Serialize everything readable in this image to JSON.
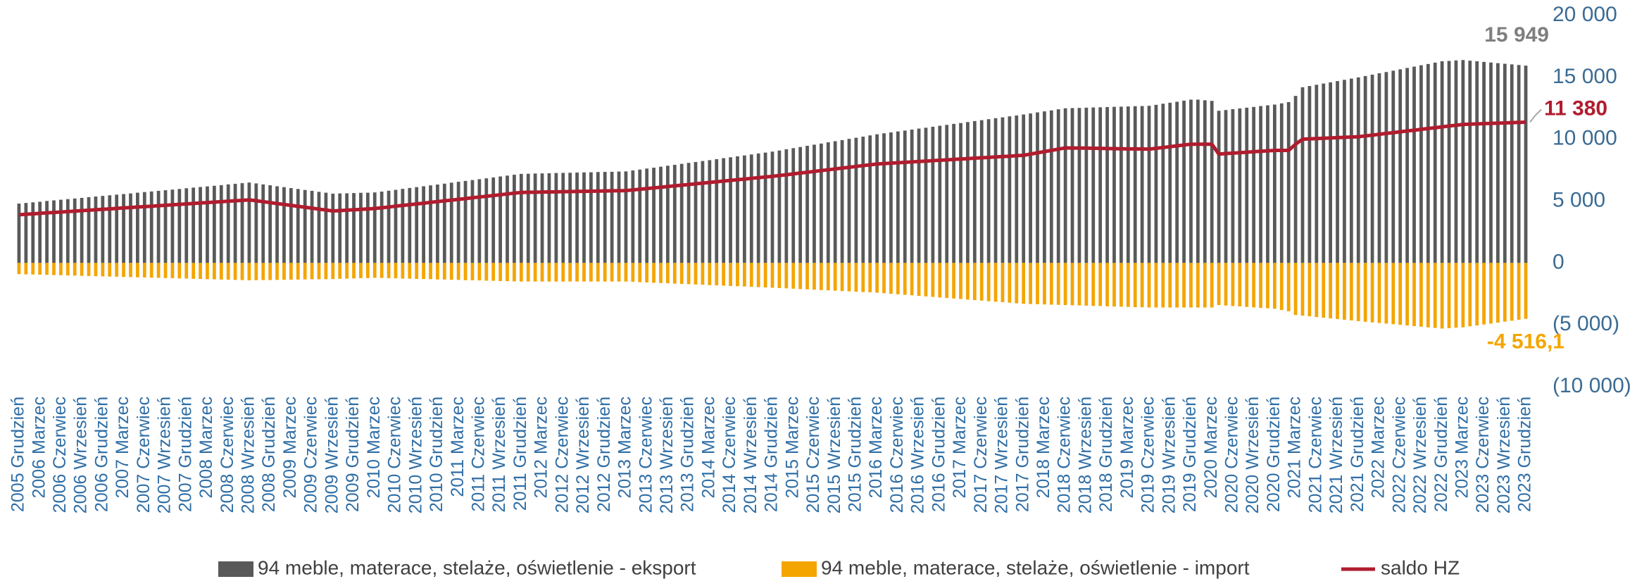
{
  "chart_data": {
    "type": "bar",
    "categories": [
      "2005 Grudzień",
      null,
      null,
      "2006 Marzec",
      null,
      null,
      "2006 Czerwiec",
      null,
      null,
      "2006 Wrzesień",
      null,
      null,
      "2006 Grudzień",
      null,
      null,
      "2007 Marzec",
      null,
      null,
      "2007 Czerwiec",
      null,
      null,
      "2007 Wrzesień",
      null,
      null,
      "2007 Grudzień",
      null,
      null,
      "2008 Marzec",
      null,
      null,
      "2008 Czerwiec",
      null,
      null,
      "2008 Wrzesień",
      null,
      null,
      "2008 Grudzień",
      null,
      null,
      "2009 Marzec",
      null,
      null,
      "2009 Czerwiec",
      null,
      null,
      "2009 Wrzesień",
      null,
      null,
      "2009 Grudzień",
      null,
      null,
      "2010 Marzec",
      null,
      null,
      "2010 Czerwiec",
      null,
      null,
      "2010 Wrzesień",
      null,
      null,
      "2010 Grudzień",
      null,
      null,
      "2011 Marzec",
      null,
      null,
      "2011 Czerwiec",
      null,
      null,
      "2011 Wrzesień",
      null,
      null,
      "2011 Grudzień",
      null,
      null,
      "2012 Marzec",
      null,
      null,
      "2012 Czerwiec",
      null,
      null,
      "2012 Wrzesień",
      null,
      null,
      "2012 Grudzień",
      null,
      null,
      "2013 Marzec",
      null,
      null,
      "2013 Czerwiec",
      null,
      null,
      "2013 Wrzesień",
      null,
      null,
      "2013 Grudzień",
      null,
      null,
      "2014 Marzec",
      null,
      null,
      "2014 Czerwiec",
      null,
      null,
      "2014 Wrzesień",
      null,
      null,
      "2014 Grudzień",
      null,
      null,
      "2015 Marzec",
      null,
      null,
      "2015 Czerwiec",
      null,
      null,
      "2015 Wrzesień",
      null,
      null,
      "2015 Grudzień",
      null,
      null,
      "2016 Marzec",
      null,
      null,
      "2016 Czerwiec",
      null,
      null,
      "2016 Wrzesień",
      null,
      null,
      "2016 Grudzień",
      null,
      null,
      "2017 Marzec",
      null,
      null,
      "2017 Czerwiec",
      null,
      null,
      "2017 Wrzesień",
      null,
      null,
      "2017 Grudzień",
      null,
      null,
      "2018 Marzec",
      null,
      null,
      "2018 Czerwiec",
      null,
      null,
      "2018 Wrzesień",
      null,
      null,
      "2018 Grudzień",
      null,
      null,
      "2019 Marzec",
      null,
      null,
      "2019 Czerwiec",
      null,
      null,
      "2019 Wrzesień",
      null,
      null,
      "2019 Grudzień",
      null,
      null,
      "2020 Marzec",
      null,
      null,
      "2020 Czerwiec",
      null,
      null,
      "2020 Wrzesień",
      null,
      null,
      "2020 Grudzień",
      null,
      null,
      "2021 Marzec",
      null,
      null,
      "2021 Czerwiec",
      null,
      null,
      "2021 Wrzesień",
      null,
      null,
      "2021 Grudzień",
      null,
      null,
      "2022 Marzec",
      null,
      null,
      "2022 Czerwiec",
      null,
      null,
      "2022 Wrzesień",
      null,
      null,
      "2022 Grudzień",
      null,
      null,
      "2023 Marzec",
      null,
      null,
      "2023 Czerwiec",
      null,
      null,
      "2023 Wrzesień",
      null,
      null,
      "2023 Grudzień"
    ],
    "series": [
      {
        "name": "94 meble, materace, stelaże, oświetlenie - eksport",
        "type": "bar",
        "color": "#595959",
        "values": [
          4800,
          4850,
          4900,
          4950,
          5010,
          5060,
          5110,
          5160,
          5210,
          5260,
          5320,
          5370,
          5420,
          5470,
          5520,
          5570,
          5620,
          5680,
          5730,
          5780,
          5830,
          5880,
          5930,
          5980,
          6040,
          6090,
          6140,
          6190,
          6240,
          6290,
          6350,
          6400,
          6450,
          6500,
          6430,
          6350,
          6280,
          6200,
          6130,
          6050,
          5980,
          5900,
          5830,
          5750,
          5680,
          5600,
          5620,
          5630,
          5650,
          5670,
          5680,
          5700,
          5770,
          5840,
          5910,
          5990,
          6060,
          6130,
          6200,
          6270,
          6340,
          6410,
          6490,
          6560,
          6630,
          6700,
          6770,
          6840,
          6910,
          6990,
          7060,
          7130,
          7200,
          7210,
          7230,
          7240,
          7250,
          7270,
          7280,
          7290,
          7310,
          7320,
          7330,
          7350,
          7360,
          7370,
          7390,
          7400,
          7480,
          7550,
          7630,
          7700,
          7780,
          7860,
          7930,
          8010,
          8090,
          8160,
          8240,
          8310,
          8390,
          8470,
          8540,
          8620,
          8690,
          8770,
          8850,
          8920,
          9000,
          9090,
          9190,
          9280,
          9370,
          9470,
          9560,
          9650,
          9750,
          9840,
          9930,
          10030,
          10120,
          10210,
          10310,
          10400,
          10480,
          10550,
          10630,
          10700,
          10780,
          10860,
          10930,
          11010,
          11090,
          11160,
          11240,
          11310,
          11390,
          11470,
          11540,
          11620,
          11700,
          11770,
          11850,
          11920,
          12000,
          12080,
          12170,
          12250,
          12330,
          12420,
          12500,
          12520,
          12530,
          12550,
          12570,
          12580,
          12600,
          12620,
          12630,
          12650,
          12670,
          12680,
          12700,
          12780,
          12870,
          12950,
          13030,
          13120,
          13200,
          13200,
          13150,
          13100,
          12300,
          12360,
          12430,
          12490,
          12550,
          12610,
          12680,
          12740,
          12800,
          12900,
          13000,
          13500,
          14200,
          14300,
          14400,
          14500,
          14600,
          14700,
          14800,
          14900,
          15000,
          15110,
          15220,
          15330,
          15430,
          15540,
          15650,
          15760,
          15870,
          15980,
          16080,
          16190,
          16300,
          16330,
          16370,
          16400,
          16350,
          16300,
          16250,
          16200,
          16150,
          16100,
          16050,
          16000,
          15949
        ],
        "value_labels": {
          "216": "15 949"
        }
      },
      {
        "name": "94 meble, materace, stelaże, oświetlenie - import",
        "type": "bar",
        "color": "#f4a500",
        "values": [
          -900,
          -920,
          -930,
          -950,
          -960,
          -980,
          -990,
          -1010,
          -1020,
          -1040,
          -1050,
          -1070,
          -1080,
          -1100,
          -1110,
          -1130,
          -1140,
          -1160,
          -1170,
          -1190,
          -1200,
          -1220,
          -1230,
          -1250,
          -1260,
          -1280,
          -1290,
          -1310,
          -1320,
          -1340,
          -1350,
          -1370,
          -1380,
          -1400,
          -1390,
          -1380,
          -1380,
          -1370,
          -1360,
          -1350,
          -1340,
          -1330,
          -1320,
          -1320,
          -1310,
          -1300,
          -1280,
          -1270,
          -1250,
          -1230,
          -1220,
          -1200,
          -1210,
          -1230,
          -1240,
          -1260,
          -1270,
          -1290,
          -1300,
          -1310,
          -1330,
          -1340,
          -1360,
          -1370,
          -1390,
          -1400,
          -1410,
          -1430,
          -1440,
          -1460,
          -1470,
          -1490,
          -1500,
          -1500,
          -1500,
          -1500,
          -1500,
          -1500,
          -1500,
          -1500,
          -1500,
          -1500,
          -1500,
          -1500,
          -1500,
          -1500,
          -1500,
          -1500,
          -1520,
          -1550,
          -1570,
          -1600,
          -1620,
          -1640,
          -1670,
          -1690,
          -1710,
          -1740,
          -1760,
          -1790,
          -1810,
          -1830,
          -1860,
          -1880,
          -1900,
          -1930,
          -1950,
          -1980,
          -2000,
          -2030,
          -2050,
          -2080,
          -2110,
          -2130,
          -2160,
          -2190,
          -2210,
          -2240,
          -2270,
          -2290,
          -2320,
          -2350,
          -2370,
          -2400,
          -2440,
          -2490,
          -2530,
          -2570,
          -2610,
          -2660,
          -2700,
          -2740,
          -2790,
          -2830,
          -2870,
          -2910,
          -2960,
          -3000,
          -3040,
          -3090,
          -3130,
          -3170,
          -3210,
          -3260,
          -3300,
          -3320,
          -3330,
          -3350,
          -3370,
          -3380,
          -3400,
          -3420,
          -3430,
          -3450,
          -3470,
          -3480,
          -3500,
          -3520,
          -3530,
          -3550,
          -3570,
          -3580,
          -3600,
          -3600,
          -3600,
          -3600,
          -3600,
          -3600,
          -3600,
          -3600,
          -3600,
          -3600,
          -3400,
          -3440,
          -3480,
          -3510,
          -3550,
          -3590,
          -3630,
          -3660,
          -3700,
          -3800,
          -3900,
          -4200,
          -4260,
          -4310,
          -4370,
          -4420,
          -4480,
          -4530,
          -4590,
          -4640,
          -4700,
          -4750,
          -4800,
          -4850,
          -4900,
          -4950,
          -5000,
          -5050,
          -5100,
          -5150,
          -5200,
          -5250,
          -5300,
          -5270,
          -5230,
          -5200,
          -5120,
          -5050,
          -4970,
          -4900,
          -4820,
          -4740,
          -4670,
          -4590,
          -4516.1
        ],
        "value_labels": {
          "216": "-4 516,1"
        }
      },
      {
        "name": "saldo HZ",
        "type": "line",
        "color": "#b01c2e",
        "values": [
          3900,
          3940,
          3970,
          4010,
          4050,
          4080,
          4120,
          4150,
          4190,
          4230,
          4260,
          4300,
          4340,
          4370,
          4410,
          4450,
          4480,
          4520,
          4550,
          4590,
          4630,
          4660,
          4700,
          4740,
          4770,
          4810,
          4850,
          4880,
          4920,
          4950,
          4990,
          5030,
          5060,
          5100,
          5030,
          4950,
          4880,
          4800,
          4730,
          4650,
          4580,
          4500,
          4430,
          4350,
          4280,
          4200,
          4230,
          4270,
          4300,
          4330,
          4370,
          4400,
          4460,
          4520,
          4590,
          4650,
          4710,
          4770,
          4830,
          4900,
          4960,
          5020,
          5080,
          5140,
          5200,
          5270,
          5330,
          5390,
          5450,
          5510,
          5580,
          5640,
          5700,
          5710,
          5720,
          5730,
          5740,
          5750,
          5760,
          5770,
          5780,
          5790,
          5800,
          5810,
          5820,
          5830,
          5840,
          5850,
          5900,
          5960,
          6010,
          6070,
          6120,
          6180,
          6230,
          6290,
          6340,
          6400,
          6450,
          6510,
          6560,
          6620,
          6670,
          6730,
          6780,
          6840,
          6890,
          6950,
          7000,
          7070,
          7130,
          7200,
          7270,
          7330,
          7400,
          7470,
          7530,
          7600,
          7670,
          7730,
          7800,
          7870,
          7930,
          8000,
          8030,
          8070,
          8100,
          8130,
          8170,
          8200,
          8230,
          8270,
          8300,
          8330,
          8370,
          8400,
          8430,
          8470,
          8500,
          8530,
          8570,
          8600,
          8630,
          8670,
          8700,
          8800,
          8900,
          9000,
          9100,
          9200,
          9300,
          9290,
          9280,
          9280,
          9270,
          9260,
          9250,
          9240,
          9230,
          9220,
          9220,
          9210,
          9200,
          9270,
          9330,
          9400,
          9470,
          9530,
          9600,
          9600,
          9600,
          9600,
          8800,
          8840,
          8880,
          8910,
          8950,
          8990,
          9030,
          9060,
          9100,
          9100,
          9100,
          9600,
          10000,
          10030,
          10050,
          10080,
          10100,
          10130,
          10150,
          10180,
          10200,
          10270,
          10330,
          10400,
          10470,
          10530,
          10600,
          10670,
          10730,
          10800,
          10870,
          10930,
          11000,
          11070,
          11130,
          11200,
          11220,
          11240,
          11260,
          11280,
          11300,
          11320,
          11340,
          11360,
          11380
        ],
        "value_labels": {
          "216": "11 380"
        }
      }
    ],
    "ylim": [
      -10000,
      20000
    ],
    "yticks": [
      {
        "value": -10000,
        "label": "(10 000)"
      },
      {
        "value": -5000,
        "label": "(5 000)"
      },
      0,
      {
        "value": 5000,
        "label": "5 000"
      },
      {
        "value": 10000,
        "label": "10 000"
      },
      {
        "value": 15000,
        "label": "15 000"
      },
      {
        "value": 20000,
        "label": "20 000"
      }
    ],
    "grid": false,
    "legend": "bottom"
  }
}
